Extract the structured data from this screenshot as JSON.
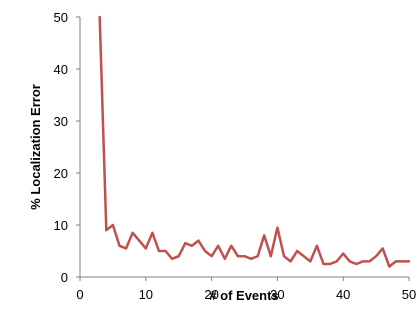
{
  "chart_data": {
    "type": "line",
    "title": "",
    "xlabel": "# of Events",
    "ylabel": "% Localization Error",
    "xlim": [
      0,
      50
    ],
    "ylim": [
      0,
      50
    ],
    "xticks": [
      0,
      10,
      20,
      30,
      40,
      50
    ],
    "yticks": [
      0,
      10,
      20,
      30,
      40,
      50
    ],
    "grid": false,
    "legend": "none",
    "series": [
      {
        "color": "#c0504d",
        "x": [
          3,
          4,
          5,
          6,
          7,
          8,
          9,
          10,
          11,
          12,
          13,
          14,
          15,
          16,
          17,
          18,
          19,
          20,
          21,
          22,
          23,
          24,
          25,
          26,
          27,
          28,
          29,
          30,
          31,
          32,
          33,
          34,
          35,
          36,
          37,
          38,
          39,
          40,
          41,
          42,
          43,
          44,
          45,
          46,
          47,
          48,
          49,
          50
        ],
        "y": [
          50,
          9,
          10,
          6,
          5.5,
          8.5,
          7,
          5.5,
          8.5,
          5,
          5,
          3.5,
          4,
          6.5,
          6,
          7,
          5,
          4,
          6,
          3.5,
          6,
          4,
          4,
          3.5,
          4,
          8,
          4,
          9.5,
          4,
          3,
          5,
          4,
          3,
          6,
          2.5,
          2.5,
          3,
          4.5,
          3,
          2.5,
          3,
          3,
          4,
          5.5,
          2,
          3,
          3,
          3
        ]
      }
    ]
  }
}
